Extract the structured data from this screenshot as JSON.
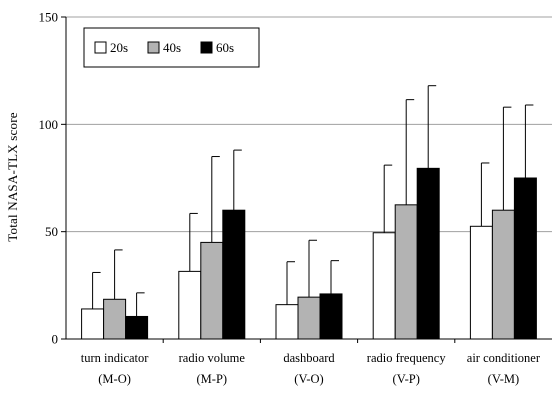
{
  "chart_data": {
    "type": "bar",
    "ylabel": "Total NASA-TLX score",
    "xlabel": "",
    "ylim": [
      0,
      150
    ],
    "yticks": [
      0,
      50,
      100,
      150
    ],
    "grid": "horizontal",
    "legend_position": "top-left",
    "categories": [
      {
        "line1": "turn indicator",
        "line2": "(M-O)"
      },
      {
        "line1": "radio volume",
        "line2": "(M-P)"
      },
      {
        "line1": "dashboard",
        "line2": "(V-O)"
      },
      {
        "line1": "radio frequency",
        "line2": "(V-P)"
      },
      {
        "line1": "air conditioner",
        "line2": "(V-M)"
      }
    ],
    "series": [
      {
        "name": "20s",
        "color": "#ffffff",
        "values": [
          14,
          31.5,
          16,
          49.5,
          52.5
        ],
        "error_upper": [
          31,
          58.5,
          36,
          81,
          82
        ]
      },
      {
        "name": "40s",
        "color": "#b3b3b3",
        "values": [
          18.5,
          45,
          19.5,
          62.5,
          60
        ],
        "error_upper": [
          41.5,
          85,
          46,
          111.5,
          108
        ]
      },
      {
        "name": "60s",
        "color": "#000000",
        "values": [
          10.5,
          60,
          21,
          79.5,
          75
        ],
        "error_upper": [
          21.5,
          88,
          36.5,
          118,
          109
        ]
      }
    ]
  }
}
